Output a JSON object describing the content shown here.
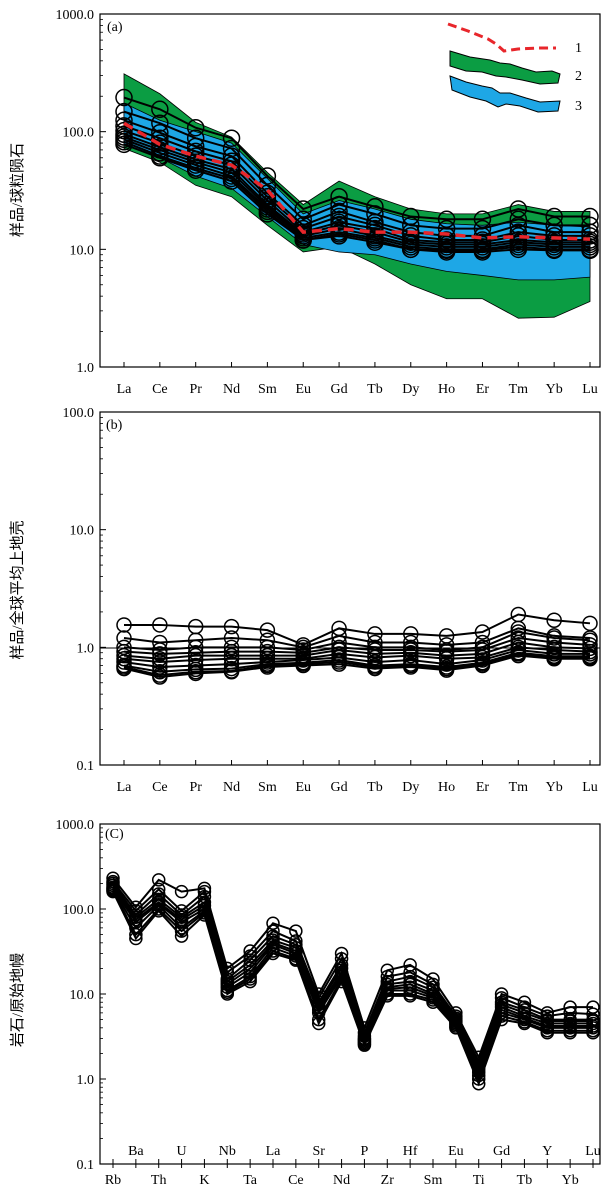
{
  "colors": {
    "axis": "#000000",
    "line": "#000000",
    "ref_dash": "#e8262b",
    "green_field": "#0b9d43",
    "blue_field": "#1ea7e6"
  },
  "chart_data": [
    {
      "panel_label": "(a)",
      "type": "line",
      "y_scale": "log",
      "ylabel": "样品/球粒陨石",
      "ylim": [
        1,
        1000
      ],
      "y_ticks": [
        "1.0",
        "10.0",
        "100.0",
        "1000.0"
      ],
      "categories": [
        "La",
        "Ce",
        "Pr",
        "Nd",
        "Sm",
        "Eu",
        "Gd",
        "Tb",
        "Dy",
        "Ho",
        "Er",
        "Tm",
        "Yb",
        "Lu"
      ],
      "legend": [
        {
          "label": "1",
          "kind": "dash"
        },
        {
          "label": "2",
          "kind": "green-field"
        },
        {
          "label": "3",
          "kind": "blue-field"
        }
      ],
      "series": [
        {
          "values": [
            195,
            155,
            108,
            88,
            42,
            22,
            28,
            23,
            19,
            18,
            18,
            22,
            19,
            19
          ]
        },
        {
          "values": [
            148,
            118,
            88,
            72,
            35,
            18,
            24,
            20,
            16,
            15,
            15,
            18,
            16,
            16
          ]
        },
        {
          "values": [
            125,
            98,
            75,
            62,
            30,
            16,
            21,
            17,
            14,
            13,
            13,
            16,
            14,
            14
          ]
        },
        {
          "values": [
            112,
            88,
            68,
            56,
            28,
            15,
            19,
            16,
            13,
            12,
            12,
            14,
            13,
            13
          ]
        },
        {
          "values": [
            102,
            80,
            62,
            52,
            26,
            14,
            17,
            15,
            12,
            11.5,
            11.5,
            13,
            12,
            12
          ]
        },
        {
          "values": [
            95,
            74,
            58,
            48,
            24,
            13.5,
            16,
            14,
            11.5,
            11,
            11,
            12,
            11.5,
            11.5
          ]
        },
        {
          "values": [
            90,
            70,
            55,
            45,
            23,
            13,
            15,
            13,
            11,
            10.5,
            10.5,
            11.5,
            11,
            11
          ]
        },
        {
          "values": [
            86,
            66,
            52,
            42,
            22,
            12.5,
            14,
            12.5,
            10.5,
            10,
            10,
            11,
            10.5,
            10.5
          ]
        },
        {
          "values": [
            82,
            62,
            49,
            40,
            21,
            12,
            13.5,
            12,
            10,
            9.8,
            9.8,
            10.5,
            10,
            10
          ]
        },
        {
          "values": [
            78,
            60,
            47,
            38,
            20,
            12,
            13,
            11.5,
            10,
            9.5,
            9.5,
            10,
            9.8,
            9.8
          ]
        }
      ],
      "reference_dash": [
        118,
        78,
        62,
        52,
        32,
        14,
        15,
        14,
        14,
        13.5,
        12.5,
        12.8,
        12.5,
        12.2
      ],
      "green_field": {
        "upper": [
          310,
          210,
          120,
          90,
          45,
          24,
          38,
          28,
          22,
          20,
          20,
          24,
          21,
          21
        ],
        "lower": [
          72,
          55,
          35,
          28,
          16,
          9.5,
          10.5,
          7.5,
          5,
          3.8,
          3.8,
          2.6,
          2.65,
          3.6
        ]
      },
      "blue_field": {
        "upper": [
          175,
          125,
          100,
          80,
          40,
          20,
          26,
          22,
          18,
          16.5,
          16,
          17,
          16,
          15.5
        ],
        "lower": [
          78,
          60,
          42,
          33,
          19,
          11,
          9.5,
          9,
          7.5,
          6.5,
          6,
          5.5,
          5.5,
          5.8
        ]
      }
    },
    {
      "panel_label": "(b)",
      "type": "line",
      "y_scale": "log",
      "ylabel": "样品/全球平均上地壳",
      "ylim": [
        0.1,
        100
      ],
      "y_ticks": [
        "0.1",
        "1.0",
        "10.0",
        "100.0"
      ],
      "categories": [
        "La",
        "Ce",
        "Pr",
        "Nd",
        "Sm",
        "Eu",
        "Gd",
        "Tb",
        "Dy",
        "Ho",
        "Er",
        "Tm",
        "Yb",
        "Lu"
      ],
      "series": [
        {
          "values": [
            1.55,
            1.55,
            1.5,
            1.5,
            1.4,
            1.05,
            1.45,
            1.3,
            1.3,
            1.25,
            1.35,
            1.9,
            1.7,
            1.6
          ]
        },
        {
          "values": [
            1.2,
            1.1,
            1.15,
            1.2,
            1.15,
            1.0,
            1.25,
            1.1,
            1.1,
            1.05,
            1.1,
            1.45,
            1.25,
            1.2
          ]
        },
        {
          "values": [
            1.0,
            0.95,
            1.0,
            1.0,
            1.0,
            0.95,
            1.1,
            1.0,
            1.0,
            0.95,
            1.0,
            1.35,
            1.2,
            1.15
          ]
        },
        {
          "values": [
            0.92,
            0.88,
            0.9,
            0.92,
            0.92,
            0.9,
            1.0,
            0.95,
            0.95,
            0.92,
            0.95,
            1.2,
            1.1,
            1.05
          ]
        },
        {
          "values": [
            0.85,
            0.8,
            0.85,
            0.85,
            0.85,
            0.85,
            0.95,
            0.88,
            0.9,
            0.85,
            0.88,
            1.1,
            1.0,
            0.98
          ]
        },
        {
          "values": [
            0.8,
            0.75,
            0.78,
            0.8,
            0.8,
            0.8,
            0.88,
            0.82,
            0.85,
            0.8,
            0.82,
            1.0,
            0.95,
            0.92
          ]
        },
        {
          "values": [
            0.75,
            0.68,
            0.7,
            0.72,
            0.75,
            0.78,
            0.82,
            0.75,
            0.78,
            0.72,
            0.78,
            0.95,
            0.88,
            0.88
          ]
        },
        {
          "values": [
            0.7,
            0.62,
            0.65,
            0.66,
            0.72,
            0.74,
            0.78,
            0.7,
            0.72,
            0.68,
            0.74,
            0.9,
            0.84,
            0.84
          ]
        },
        {
          "values": [
            0.68,
            0.58,
            0.62,
            0.63,
            0.7,
            0.72,
            0.75,
            0.68,
            0.7,
            0.66,
            0.72,
            0.88,
            0.82,
            0.82
          ]
        },
        {
          "values": [
            0.66,
            0.56,
            0.6,
            0.62,
            0.68,
            0.7,
            0.72,
            0.66,
            0.68,
            0.64,
            0.7,
            0.85,
            0.8,
            0.8
          ]
        }
      ]
    },
    {
      "panel_label": "(C)",
      "type": "line",
      "y_scale": "log",
      "ylabel": "岩石/原始地幔",
      "ylim": [
        0.1,
        1000
      ],
      "y_ticks": [
        "0.1",
        "1.0",
        "10.0",
        "100.0",
        "1000.0"
      ],
      "categories": [
        "Rb",
        "Ba",
        "Th",
        "U",
        "K",
        "Nb",
        "Ta",
        "La",
        "Ce",
        "Sr",
        "Nd",
        "P",
        "Zr",
        "Hf",
        "Sm",
        "Eu",
        "Ti",
        "Gd",
        "Tb",
        "Y",
        "Yb",
        "Lu"
      ],
      "series": [
        {
          "values": [
            230,
            105,
            220,
            160,
            175,
            20,
            32,
            68,
            55,
            10,
            30,
            4,
            19,
            22,
            15,
            6,
            1.8,
            10,
            8,
            6,
            7,
            7
          ]
        },
        {
          "values": [
            210,
            95,
            170,
            95,
            160,
            18,
            28,
            55,
            42,
            9,
            26,
            3.5,
            16,
            18,
            13,
            5.5,
            1.6,
            9,
            7,
            5.5,
            6,
            5.8
          ]
        },
        {
          "values": [
            200,
            85,
            150,
            85,
            140,
            15,
            25,
            48,
            38,
            8,
            22,
            3.2,
            14,
            16,
            12,
            5.2,
            1.5,
            8,
            6.5,
            5,
            5,
            5
          ]
        },
        {
          "values": [
            190,
            80,
            130,
            80,
            120,
            14,
            22,
            43,
            35,
            7.5,
            20,
            3,
            13,
            14,
            11,
            5,
            1.4,
            7.5,
            6,
            4.8,
            4.8,
            4.8
          ]
        },
        {
          "values": [
            180,
            75,
            120,
            75,
            110,
            13,
            20,
            40,
            32,
            7,
            18,
            2.9,
            12,
            13,
            10,
            4.8,
            1.3,
            7,
            5.5,
            4.5,
            4.5,
            4.5
          ]
        },
        {
          "values": [
            175,
            70,
            115,
            70,
            100,
            12,
            18,
            38,
            30,
            6.5,
            17,
            2.8,
            11.5,
            12,
            9.5,
            4.6,
            1.2,
            6.5,
            5.2,
            4.2,
            4.2,
            4.2
          ]
        },
        {
          "values": [
            170,
            60,
            110,
            60,
            95,
            11,
            16,
            35,
            28,
            6,
            16,
            2.7,
            11,
            11,
            9,
            4.4,
            1.1,
            6,
            5,
            4,
            4,
            4
          ]
        },
        {
          "values": [
            165,
            50,
            100,
            55,
            90,
            10.5,
            15,
            32,
            26,
            5,
            15,
            2.6,
            10,
            10,
            8.5,
            4.2,
            1.0,
            5.5,
            4.7,
            3.7,
            3.7,
            3.7
          ]
        },
        {
          "values": [
            160,
            45,
            95,
            48,
            85,
            10,
            14,
            30,
            25,
            4.5,
            14,
            2.5,
            9.5,
            9.5,
            8,
            4,
            0.88,
            5,
            4.5,
            3.5,
            3.5,
            3.5
          ]
        }
      ]
    }
  ]
}
